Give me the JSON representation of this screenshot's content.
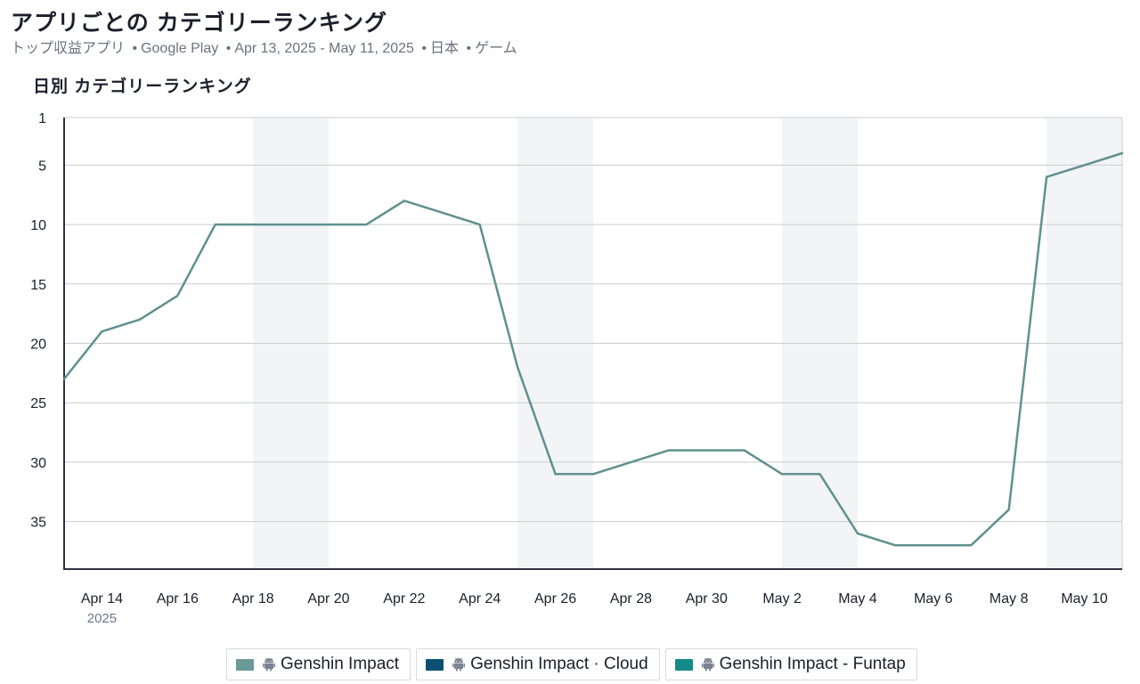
{
  "header": {
    "title": "アプリごとの カテゴリーランキング",
    "subtitle": {
      "ranking": "トップ収益アプリ",
      "store": "Google Play",
      "date_range": "Apr 13, 2025 - May 11, 2025",
      "country": "日本",
      "category": "ゲーム",
      "separator": "•"
    }
  },
  "chart_title": "日別 カテゴリーランキング",
  "chart_data": {
    "type": "line",
    "x": [
      "2025-04-13",
      "2025-04-14",
      "2025-04-15",
      "2025-04-16",
      "2025-04-17",
      "2025-04-18",
      "2025-04-19",
      "2025-04-20",
      "2025-04-21",
      "2025-04-22",
      "2025-04-23",
      "2025-04-24",
      "2025-04-25",
      "2025-04-26",
      "2025-04-27",
      "2025-04-28",
      "2025-04-29",
      "2025-04-30",
      "2025-05-01",
      "2025-05-02",
      "2025-05-03",
      "2025-05-04",
      "2025-05-05",
      "2025-05-06",
      "2025-05-07",
      "2025-05-08",
      "2025-05-09",
      "2025-05-10",
      "2025-05-11"
    ],
    "series": [
      {
        "name": "Genshin Impact",
        "color": "#5f9190",
        "values": [
          23,
          19,
          18,
          16,
          10,
          10,
          10,
          10,
          10,
          8,
          9,
          10,
          22,
          31,
          31,
          30,
          29,
          29,
          29,
          31,
          31,
          36,
          37,
          37,
          37,
          34,
          6,
          5,
          4
        ]
      }
    ],
    "y_axis": {
      "reversed": true,
      "ylim": [
        1,
        39
      ],
      "ticks": [
        1,
        5,
        10,
        15,
        20,
        25,
        30,
        35
      ]
    },
    "x_ticks": [
      {
        "date": "2025-04-14",
        "label": "Apr 14",
        "sublabel": "2025"
      },
      {
        "date": "2025-04-16",
        "label": "Apr 16"
      },
      {
        "date": "2025-04-18",
        "label": "Apr 18"
      },
      {
        "date": "2025-04-20",
        "label": "Apr 20"
      },
      {
        "date": "2025-04-22",
        "label": "Apr 22"
      },
      {
        "date": "2025-04-24",
        "label": "Apr 24"
      },
      {
        "date": "2025-04-26",
        "label": "Apr 26"
      },
      {
        "date": "2025-04-28",
        "label": "Apr 28"
      },
      {
        "date": "2025-04-30",
        "label": "Apr 30"
      },
      {
        "date": "2025-05-02",
        "label": "May 2"
      },
      {
        "date": "2025-05-04",
        "label": "May 4"
      },
      {
        "date": "2025-05-06",
        "label": "May 6"
      },
      {
        "date": "2025-05-08",
        "label": "May 8"
      },
      {
        "date": "2025-05-10",
        "label": "May 10"
      }
    ],
    "weekend_bands": [
      [
        "2025-04-18",
        "2025-04-20"
      ],
      [
        "2025-04-25",
        "2025-04-27"
      ],
      [
        "2025-05-02",
        "2025-05-04"
      ],
      [
        "2025-05-09",
        "2025-05-11"
      ]
    ],
    "grid": true,
    "colors": {
      "grid": "#c9ccd2",
      "axis": "#2d3340",
      "band": "#f3f4f6",
      "tick_text": "#1a1f2b",
      "year_text": "#6b7a8c"
    }
  },
  "legend": {
    "icon": "android-icon",
    "items": [
      {
        "label": "Genshin Impact",
        "color": "#6a9a98"
      },
      {
        "label": "Genshin Impact · Cloud",
        "color": "#0d4f72"
      },
      {
        "label": "Genshin Impact - Funtap",
        "color": "#148b8a"
      }
    ]
  }
}
